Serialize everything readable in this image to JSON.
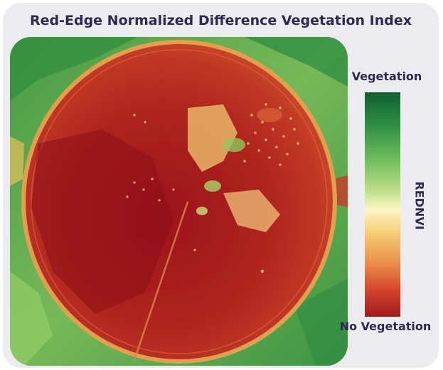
{
  "title": "Red-Edge Normalized Difference Vegetation Index",
  "legend": {
    "top_label": "Vegetation",
    "bottom_label": "No Vegetation",
    "axis_label": "REDNVI"
  },
  "colors": {
    "high": "#0f5f2e",
    "mid": "#fbf7c3",
    "low": "#a01a1d",
    "text": "#2d2950",
    "panel": "#ececee"
  }
}
